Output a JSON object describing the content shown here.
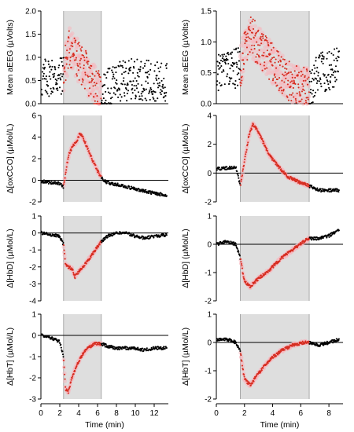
{
  "colors": {
    "baseline": "#000000",
    "treatment": "#d62d20",
    "treatment_halo": "#f6b8bf",
    "shade": "#dedede",
    "shade_border": "#9a9a9a"
  },
  "chart_data": [
    {
      "type": "scatter",
      "panel": "left-row1",
      "ylabel": "Mean aEEG (µVolts)",
      "ylim": [
        0,
        2
      ],
      "yticks": [
        "0.0",
        "0.5",
        "1.0",
        "1.5",
        "2.0"
      ],
      "xlim": [
        0,
        13.5
      ],
      "shaded_interval": [
        2.4,
        6.4
      ],
      "series": [
        {
          "values": [
            [
              0,
              0.5
            ],
            [
              1,
              0.6
            ],
            [
              2,
              0.55
            ],
            [
              2.4,
              0.7
            ],
            [
              3,
              1.2
            ],
            [
              3.5,
              1.1
            ],
            [
              4,
              0.9
            ],
            [
              4.5,
              0.8
            ],
            [
              5,
              0.6
            ],
            [
              5.5,
              0.45
            ],
            [
              6,
              0.3
            ],
            [
              6.4,
              0.25
            ],
            [
              7,
              0.3
            ],
            [
              8,
              0.45
            ],
            [
              9,
              0.5
            ],
            [
              10,
              0.55
            ],
            [
              11,
              0.5
            ],
            [
              12,
              0.5
            ],
            [
              13.3,
              0.45
            ]
          ]
        }
      ]
    },
    {
      "type": "scatter",
      "panel": "right-row1",
      "ylabel": "Mean aEEG (µVolts)",
      "ylim": [
        0,
        1.5
      ],
      "yticks": [
        "0.0",
        "0.5",
        "1.0",
        "1.5"
      ],
      "xlim": [
        0,
        9
      ],
      "shaded_interval": [
        1.7,
        6.6
      ],
      "series": [
        {
          "values": [
            [
              0,
              0.5
            ],
            [
              0.8,
              0.55
            ],
            [
              1.7,
              0.6
            ],
            [
              2.3,
              1.1
            ],
            [
              2.8,
              1.0
            ],
            [
              3.5,
              0.8
            ],
            [
              4.5,
              0.5
            ],
            [
              5.5,
              0.3
            ],
            [
              6.6,
              0.25
            ],
            [
              7.3,
              0.5
            ],
            [
              8,
              0.55
            ],
            [
              8.7,
              0.6
            ]
          ]
        }
      ]
    },
    {
      "type": "scatter",
      "panel": "left-row2",
      "ylabel": "Δ[oxCCO] (µMol/L)",
      "ylim": [
        -2,
        6
      ],
      "yticks": [
        "-2",
        "0",
        "2",
        "4",
        "6"
      ],
      "xlim": [
        0,
        13.5
      ],
      "shaded_interval": [
        2.4,
        6.4
      ],
      "series": [
        {
          "values": [
            [
              0,
              -0.1
            ],
            [
              1,
              -0.2
            ],
            [
              2,
              -0.3
            ],
            [
              2.4,
              -0.6
            ],
            [
              2.7,
              1.2
            ],
            [
              3,
              2.5
            ],
            [
              3.4,
              3.2
            ],
            [
              3.8,
              3.6
            ],
            [
              4.1,
              4.3
            ],
            [
              4.5,
              3.9
            ],
            [
              5,
              2.8
            ],
            [
              5.5,
              1.8
            ],
            [
              6,
              0.9
            ],
            [
              6.4,
              0.2
            ],
            [
              7,
              -0.2
            ],
            [
              8,
              -0.4
            ],
            [
              9,
              -0.6
            ],
            [
              10,
              -0.8
            ],
            [
              11,
              -1.0
            ],
            [
              12,
              -1.2
            ],
            [
              13.3,
              -1.4
            ]
          ]
        }
      ]
    },
    {
      "type": "scatter",
      "panel": "right-row2",
      "ylabel": "Δ[oxCCO] (µMol/L)",
      "ylim": [
        -2,
        4
      ],
      "yticks": [
        "-2",
        "0",
        "2",
        "4"
      ],
      "xlim": [
        0,
        9
      ],
      "shaded_interval": [
        1.7,
        6.6
      ],
      "series": [
        {
          "values": [
            [
              0,
              0.3
            ],
            [
              0.8,
              0.35
            ],
            [
              1.4,
              0.4
            ],
            [
              1.7,
              -0.9
            ],
            [
              2.0,
              0.8
            ],
            [
              2.3,
              2.5
            ],
            [
              2.6,
              3.4
            ],
            [
              2.9,
              3.0
            ],
            [
              3.3,
              2.2
            ],
            [
              3.8,
              1.2
            ],
            [
              4.3,
              0.6
            ],
            [
              5,
              -0.2
            ],
            [
              5.8,
              -0.6
            ],
            [
              6.6,
              -0.9
            ],
            [
              7.3,
              -1.2
            ],
            [
              8,
              -1.2
            ],
            [
              8.7,
              -1.2
            ]
          ]
        }
      ]
    },
    {
      "type": "scatter",
      "panel": "left-row3",
      "ylabel": "Δ[HbD] (µMol/L)",
      "ylim": [
        -4,
        1
      ],
      "yticks": [
        "-4",
        "-3",
        "-2",
        "-1",
        "0",
        "1"
      ],
      "xlim": [
        0,
        13.5
      ],
      "shaded_interval": [
        2.4,
        6.4
      ],
      "series": [
        {
          "values": [
            [
              0,
              0.0
            ],
            [
              1,
              -0.1
            ],
            [
              2,
              -0.2
            ],
            [
              2.4,
              -0.7
            ],
            [
              2.6,
              -1.8
            ],
            [
              2.9,
              -2.0
            ],
            [
              3.3,
              -2.1
            ],
            [
              3.6,
              -2.6
            ],
            [
              4,
              -2.3
            ],
            [
              4.5,
              -2.0
            ],
            [
              5,
              -1.6
            ],
            [
              5.5,
              -1.2
            ],
            [
              6,
              -0.8
            ],
            [
              6.4,
              -0.5
            ],
            [
              7,
              -0.2
            ],
            [
              8,
              0.0
            ],
            [
              9,
              0.0
            ],
            [
              10,
              -0.2
            ],
            [
              11,
              -0.3
            ],
            [
              12,
              -0.2
            ],
            [
              13.3,
              -0.1
            ]
          ]
        }
      ]
    },
    {
      "type": "scatter",
      "panel": "right-row3",
      "ylabel": "Δ[HbD] (µMol/L)",
      "ylim": [
        -2,
        1
      ],
      "yticks": [
        "-2",
        "-1",
        "0",
        "1"
      ],
      "xlim": [
        0,
        9
      ],
      "shaded_interval": [
        1.7,
        6.6
      ],
      "series": [
        {
          "values": [
            [
              0,
              0.0
            ],
            [
              0.8,
              0.1
            ],
            [
              1.4,
              0.0
            ],
            [
              1.7,
              -0.5
            ],
            [
              2.0,
              -1.3
            ],
            [
              2.4,
              -1.5
            ],
            [
              3,
              -1.2
            ],
            [
              3.8,
              -0.9
            ],
            [
              4.6,
              -0.5
            ],
            [
              5.4,
              -0.2
            ],
            [
              6.2,
              0.1
            ],
            [
              6.6,
              0.2
            ],
            [
              7.3,
              0.2
            ],
            [
              8,
              0.3
            ],
            [
              8.7,
              0.5
            ]
          ]
        }
      ]
    },
    {
      "type": "scatter",
      "panel": "left-row4",
      "ylabel": "Δ[HbT] (µMol/L)",
      "ylim": [
        -3,
        1
      ],
      "yticks": [
        "-3",
        "-2",
        "-1",
        "0",
        "1"
      ],
      "xlim": [
        0,
        13.5
      ],
      "shaded_interval": [
        2.4,
        6.4
      ],
      "series": [
        {
          "values": [
            [
              0,
              0.0
            ],
            [
              1,
              -0.1
            ],
            [
              2,
              -0.3
            ],
            [
              2.4,
              -1.0
            ],
            [
              2.6,
              -2.5
            ],
            [
              2.9,
              -2.7
            ],
            [
              3.3,
              -2.0
            ],
            [
              3.8,
              -1.4
            ],
            [
              4.4,
              -0.9
            ],
            [
              5,
              -0.6
            ],
            [
              5.6,
              -0.4
            ],
            [
              6.4,
              -0.4
            ],
            [
              7,
              -0.5
            ],
            [
              8,
              -0.6
            ],
            [
              9,
              -0.6
            ],
            [
              10,
              -0.6
            ],
            [
              11,
              -0.7
            ],
            [
              12,
              -0.6
            ],
            [
              13.3,
              -0.6
            ]
          ]
        }
      ]
    },
    {
      "type": "scatter",
      "panel": "right-row4",
      "ylabel": "Δ[HbT] (µMol/L)",
      "xlabel": "Time (min)",
      "ylim": [
        -2,
        1
      ],
      "yticks": [
        "-2",
        "-1",
        "0",
        "1"
      ],
      "xlim": [
        0,
        9
      ],
      "shaded_interval": [
        1.7,
        6.6
      ],
      "series": [
        {
          "values": [
            [
              0,
              0.1
            ],
            [
              0.8,
              0.1
            ],
            [
              1.4,
              0.0
            ],
            [
              1.7,
              -0.3
            ],
            [
              2.0,
              -1.3
            ],
            [
              2.4,
              -1.5
            ],
            [
              3,
              -1.1
            ],
            [
              3.8,
              -0.6
            ],
            [
              4.6,
              -0.3
            ],
            [
              5.4,
              -0.1
            ],
            [
              6.2,
              0.0
            ],
            [
              6.6,
              0.0
            ],
            [
              7.3,
              -0.1
            ],
            [
              8,
              0.0
            ],
            [
              8.7,
              0.1
            ]
          ]
        }
      ]
    }
  ],
  "x_axes": {
    "left": {
      "ticks": [
        "0",
        "2",
        "4",
        "6",
        "8",
        "10",
        "12"
      ],
      "xlabel": "Time (min)"
    },
    "right": {
      "ticks": [
        "0",
        "2",
        "4",
        "6",
        "8"
      ],
      "xlabel": "Time (min)"
    }
  }
}
